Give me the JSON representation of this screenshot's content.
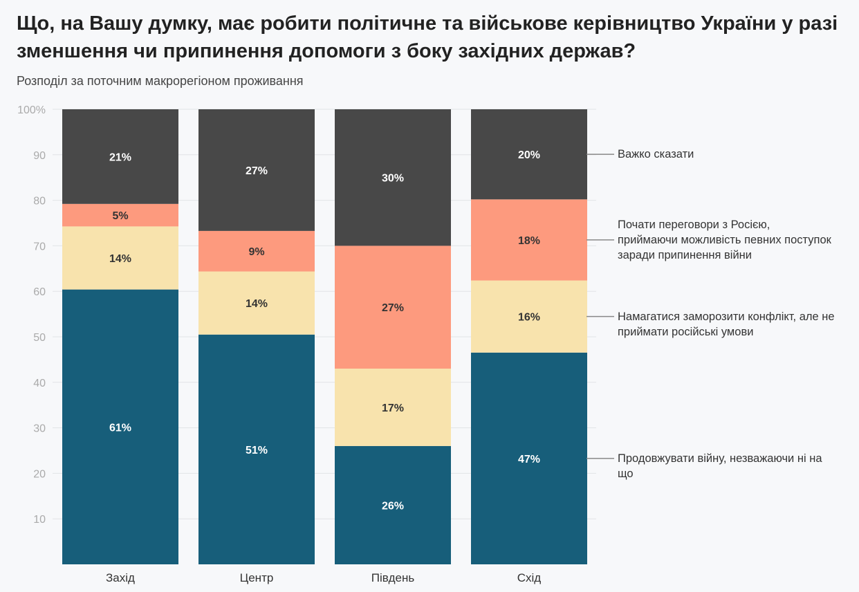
{
  "chart_data": {
    "type": "bar",
    "stacked": true,
    "title": "Що, на Вашу думку, має робити політичне та військове керівництво України у разі зменшення чи припинення допомоги з боку західних держав?",
    "subtitle": "Розподіл за поточним макрорегіоном проживання",
    "categories": [
      "Захід",
      "Центр",
      "Південь",
      "Схід"
    ],
    "ylim": [
      0,
      100
    ],
    "yticks": [
      "10",
      "20",
      "30",
      "40",
      "50",
      "60",
      "70",
      "80",
      "90",
      "100%"
    ],
    "grid": true,
    "legend_placement": "right",
    "series": [
      {
        "name": "Продовжувати війну, незважаючи ні на що",
        "color": "#175e7a",
        "label_color": "#ffffff",
        "values": [
          61,
          51,
          26,
          47
        ]
      },
      {
        "name": "Намагатися заморозити конфлікт, але не приймати російські умови",
        "color": "#f8e3ad",
        "label_color": "#333333",
        "values": [
          14,
          14,
          17,
          16
        ]
      },
      {
        "name": "Почати переговори з Росією, приймаючи можливість певних поступок заради припинення війни",
        "color": "#fd9a7e",
        "label_color": "#333333",
        "values": [
          5,
          9,
          27,
          18
        ]
      },
      {
        "name": "Важко сказати",
        "color": "#484848",
        "label_color": "#ffffff",
        "values": [
          21,
          27,
          30,
          20
        ]
      }
    ]
  }
}
